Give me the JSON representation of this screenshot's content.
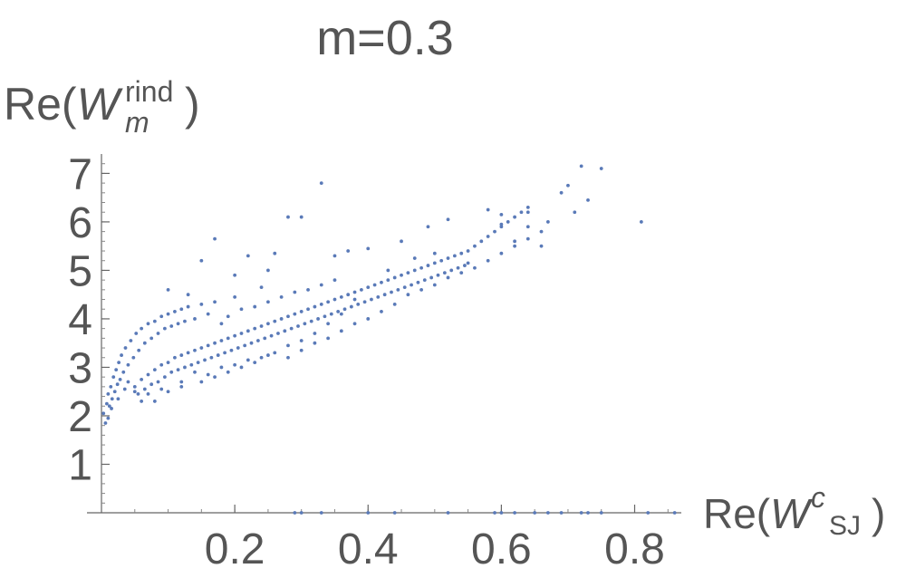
{
  "chart_data": {
    "type": "scatter",
    "title": "m=0.3",
    "ylabel": {
      "base": "Re(",
      "symbol": "W",
      "sub": "m",
      "sup": "rind",
      "close": ")"
    },
    "xlabel": {
      "base": "Re(",
      "symbol": "W",
      "sup": "c",
      "sub": "SJ",
      "close": ")"
    },
    "xlim": [
      0,
      0.87
    ],
    "ylim": [
      0,
      7.4
    ],
    "x_ticks": [
      0.2,
      0.4,
      0.6,
      0.8
    ],
    "x_tick_labels": [
      "0.2",
      "0.4",
      "0.6",
      "0.8"
    ],
    "y_ticks": [
      1,
      2,
      3,
      4,
      5,
      6,
      7
    ],
    "y_tick_labels": [
      "1",
      "2",
      "3",
      "4",
      "5",
      "6",
      "7"
    ],
    "grid": false,
    "point_color": "#5a7ab8",
    "series": [
      {
        "points": [
          [
            0.003,
            2.05
          ],
          [
            0.006,
            1.85
          ],
          [
            0.008,
            2.25
          ],
          [
            0.01,
            2.45
          ],
          [
            0.012,
            2.2
          ],
          [
            0.014,
            2.6
          ],
          [
            0.016,
            2.35
          ],
          [
            0.018,
            2.8
          ],
          [
            0.02,
            2.5
          ],
          [
            0.022,
            2.95
          ],
          [
            0.024,
            2.65
          ],
          [
            0.026,
            3.1
          ],
          [
            0.028,
            2.75
          ],
          [
            0.03,
            3.25
          ],
          [
            0.033,
            2.9
          ],
          [
            0.036,
            3.4
          ],
          [
            0.04,
            3.05
          ],
          [
            0.044,
            3.55
          ],
          [
            0.048,
            3.2
          ],
          [
            0.052,
            3.7
          ],
          [
            0.056,
            3.35
          ],
          [
            0.06,
            3.8
          ],
          [
            0.065,
            3.5
          ],
          [
            0.07,
            3.9
          ],
          [
            0.075,
            3.6
          ],
          [
            0.08,
            3.95
          ],
          [
            0.085,
            3.7
          ],
          [
            0.09,
            4.05
          ],
          [
            0.095,
            3.8
          ],
          [
            0.1,
            4.1
          ],
          [
            0.105,
            3.85
          ],
          [
            0.11,
            4.15
          ],
          [
            0.115,
            3.9
          ],
          [
            0.12,
            4.2
          ],
          [
            0.125,
            3.95
          ],
          [
            0.13,
            4.25
          ],
          [
            0.14,
            4.0
          ],
          [
            0.15,
            4.3
          ],
          [
            0.16,
            4.1
          ],
          [
            0.17,
            4.35
          ],
          [
            0.05,
            2.6
          ],
          [
            0.055,
            2.45
          ],
          [
            0.06,
            2.75
          ],
          [
            0.065,
            2.55
          ],
          [
            0.07,
            2.85
          ],
          [
            0.075,
            2.65
          ],
          [
            0.08,
            2.95
          ],
          [
            0.085,
            2.7
          ],
          [
            0.09,
            3.05
          ],
          [
            0.095,
            2.8
          ],
          [
            0.1,
            3.1
          ],
          [
            0.105,
            2.9
          ],
          [
            0.11,
            3.2
          ],
          [
            0.115,
            2.95
          ],
          [
            0.12,
            3.25
          ],
          [
            0.125,
            3.0
          ],
          [
            0.13,
            3.3
          ],
          [
            0.135,
            3.05
          ],
          [
            0.14,
            3.35
          ],
          [
            0.145,
            3.1
          ],
          [
            0.15,
            3.4
          ],
          [
            0.155,
            3.15
          ],
          [
            0.16,
            3.45
          ],
          [
            0.165,
            3.2
          ],
          [
            0.17,
            3.5
          ],
          [
            0.175,
            3.25
          ],
          [
            0.18,
            3.55
          ],
          [
            0.185,
            3.3
          ],
          [
            0.19,
            3.6
          ],
          [
            0.195,
            3.35
          ],
          [
            0.2,
            3.65
          ],
          [
            0.205,
            3.4
          ],
          [
            0.21,
            3.7
          ],
          [
            0.215,
            3.45
          ],
          [
            0.22,
            3.75
          ],
          [
            0.225,
            3.5
          ],
          [
            0.23,
            3.8
          ],
          [
            0.235,
            3.55
          ],
          [
            0.24,
            3.85
          ],
          [
            0.245,
            3.6
          ],
          [
            0.25,
            3.9
          ],
          [
            0.255,
            3.65
          ],
          [
            0.26,
            3.95
          ],
          [
            0.265,
            3.7
          ],
          [
            0.27,
            4.0
          ],
          [
            0.275,
            3.75
          ],
          [
            0.28,
            4.05
          ],
          [
            0.285,
            3.8
          ],
          [
            0.29,
            4.1
          ],
          [
            0.295,
            3.85
          ],
          [
            0.3,
            4.15
          ],
          [
            0.305,
            3.9
          ],
          [
            0.31,
            4.2
          ],
          [
            0.315,
            3.95
          ],
          [
            0.32,
            4.25
          ],
          [
            0.325,
            4.0
          ],
          [
            0.33,
            4.3
          ],
          [
            0.335,
            4.05
          ],
          [
            0.34,
            4.35
          ],
          [
            0.345,
            4.1
          ],
          [
            0.35,
            4.4
          ],
          [
            0.355,
            4.15
          ],
          [
            0.36,
            4.45
          ],
          [
            0.365,
            4.2
          ],
          [
            0.37,
            4.5
          ],
          [
            0.375,
            4.25
          ],
          [
            0.38,
            4.55
          ],
          [
            0.385,
            4.3
          ],
          [
            0.39,
            4.6
          ],
          [
            0.395,
            4.35
          ],
          [
            0.4,
            4.65
          ],
          [
            0.405,
            4.4
          ],
          [
            0.41,
            4.7
          ],
          [
            0.415,
            4.45
          ],
          [
            0.42,
            4.75
          ],
          [
            0.425,
            4.5
          ],
          [
            0.43,
            4.8
          ],
          [
            0.435,
            4.55
          ],
          [
            0.44,
            4.85
          ],
          [
            0.445,
            4.6
          ],
          [
            0.45,
            4.9
          ],
          [
            0.455,
            4.65
          ],
          [
            0.46,
            4.95
          ],
          [
            0.465,
            4.7
          ],
          [
            0.47,
            5.0
          ],
          [
            0.475,
            4.75
          ],
          [
            0.48,
            5.05
          ],
          [
            0.485,
            4.8
          ],
          [
            0.49,
            5.1
          ],
          [
            0.495,
            4.85
          ],
          [
            0.5,
            5.15
          ],
          [
            0.505,
            4.9
          ],
          [
            0.51,
            5.2
          ],
          [
            0.515,
            4.95
          ],
          [
            0.52,
            5.25
          ],
          [
            0.525,
            5.0
          ],
          [
            0.53,
            5.3
          ],
          [
            0.535,
            5.05
          ],
          [
            0.54,
            5.35
          ],
          [
            0.545,
            5.1
          ],
          [
            0.55,
            5.4
          ],
          [
            0.56,
            5.5
          ],
          [
            0.57,
            5.6
          ],
          [
            0.58,
            5.7
          ],
          [
            0.59,
            5.8
          ],
          [
            0.6,
            5.9
          ],
          [
            0.61,
            6.0
          ],
          [
            0.62,
            6.1
          ],
          [
            0.63,
            6.2
          ],
          [
            0.64,
            6.3
          ],
          [
            0.08,
            2.3
          ],
          [
            0.1,
            2.5
          ],
          [
            0.12,
            2.7
          ],
          [
            0.14,
            2.9
          ],
          [
            0.16,
            2.85
          ],
          [
            0.18,
            3.0
          ],
          [
            0.2,
            3.05
          ],
          [
            0.22,
            3.15
          ],
          [
            0.24,
            3.2
          ],
          [
            0.26,
            3.3
          ],
          [
            0.1,
            4.6
          ],
          [
            0.13,
            4.5
          ],
          [
            0.15,
            5.2
          ],
          [
            0.17,
            5.65
          ],
          [
            0.2,
            4.9
          ],
          [
            0.22,
            5.3
          ],
          [
            0.25,
            5.0
          ],
          [
            0.28,
            6.1
          ],
          [
            0.3,
            6.1
          ],
          [
            0.33,
            6.8
          ],
          [
            0.2,
            4.45
          ],
          [
            0.24,
            4.65
          ],
          [
            0.26,
            5.35
          ],
          [
            0.35,
            5.3
          ],
          [
            0.37,
            5.4
          ],
          [
            0.4,
            5.45
          ],
          [
            0.45,
            5.6
          ],
          [
            0.49,
            5.9
          ],
          [
            0.52,
            6.05
          ],
          [
            0.58,
            6.25
          ],
          [
            0.6,
            6.15
          ],
          [
            0.64,
            6.2
          ],
          [
            0.67,
            6.0
          ],
          [
            0.69,
            6.6
          ],
          [
            0.7,
            6.75
          ],
          [
            0.71,
            6.2
          ],
          [
            0.72,
            7.15
          ],
          [
            0.73,
            6.45
          ],
          [
            0.75,
            7.1
          ],
          [
            0.81,
            6.0
          ],
          [
            0.6,
            5.95
          ],
          [
            0.62,
            5.6
          ],
          [
            0.64,
            5.9
          ],
          [
            0.66,
            5.5
          ],
          [
            0.55,
            5.15
          ],
          [
            0.5,
            5.35
          ],
          [
            0.47,
            5.25
          ],
          [
            0.43,
            5.0
          ],
          [
            0.38,
            4.4
          ],
          [
            0.36,
            4.1
          ],
          [
            0.34,
            3.9
          ],
          [
            0.32,
            3.7
          ],
          [
            0.3,
            3.55
          ],
          [
            0.28,
            3.45
          ],
          [
            0.25,
            3.25
          ],
          [
            0.23,
            3.1
          ],
          [
            0.21,
            3.0
          ],
          [
            0.19,
            2.9
          ],
          [
            0.17,
            2.8
          ],
          [
            0.15,
            2.7
          ],
          [
            0.12,
            2.6
          ],
          [
            0.09,
            2.55
          ],
          [
            0.07,
            2.45
          ],
          [
            0.06,
            2.3
          ],
          [
            0.05,
            2.5
          ],
          [
            0.04,
            2.7
          ],
          [
            0.035,
            2.55
          ],
          [
            0.025,
            2.35
          ],
          [
            0.015,
            2.15
          ],
          [
            0.01,
            1.95
          ],
          [
            0.28,
            3.2
          ],
          [
            0.3,
            3.35
          ],
          [
            0.32,
            3.5
          ],
          [
            0.34,
            3.6
          ],
          [
            0.36,
            3.75
          ],
          [
            0.38,
            3.9
          ],
          [
            0.4,
            4.0
          ],
          [
            0.42,
            4.15
          ],
          [
            0.44,
            4.3
          ],
          [
            0.46,
            4.5
          ],
          [
            0.48,
            4.6
          ],
          [
            0.5,
            4.7
          ],
          [
            0.52,
            4.85
          ],
          [
            0.54,
            4.95
          ],
          [
            0.56,
            5.05
          ],
          [
            0.58,
            5.2
          ],
          [
            0.6,
            5.35
          ],
          [
            0.62,
            5.5
          ],
          [
            0.64,
            5.65
          ],
          [
            0.66,
            5.8
          ],
          [
            0.18,
            3.9
          ],
          [
            0.19,
            4.05
          ],
          [
            0.21,
            4.2
          ],
          [
            0.23,
            4.25
          ],
          [
            0.25,
            4.35
          ],
          [
            0.27,
            4.45
          ],
          [
            0.29,
            4.55
          ],
          [
            0.31,
            4.6
          ],
          [
            0.33,
            4.7
          ],
          [
            0.35,
            4.8
          ],
          [
            0.29,
            0.0
          ],
          [
            0.3,
            0.0
          ],
          [
            0.33,
            0.0
          ],
          [
            0.4,
            0.0
          ],
          [
            0.44,
            0.0
          ],
          [
            0.52,
            0.0
          ],
          [
            0.59,
            0.0
          ],
          [
            0.6,
            0.0
          ],
          [
            0.62,
            0.0
          ],
          [
            0.65,
            0.0
          ],
          [
            0.67,
            0.0
          ],
          [
            0.69,
            0.0
          ],
          [
            0.72,
            0.0
          ],
          [
            0.73,
            0.0
          ],
          [
            0.75,
            0.0
          ],
          [
            0.82,
            0.0
          ],
          [
            0.86,
            0.0
          ]
        ]
      }
    ]
  }
}
